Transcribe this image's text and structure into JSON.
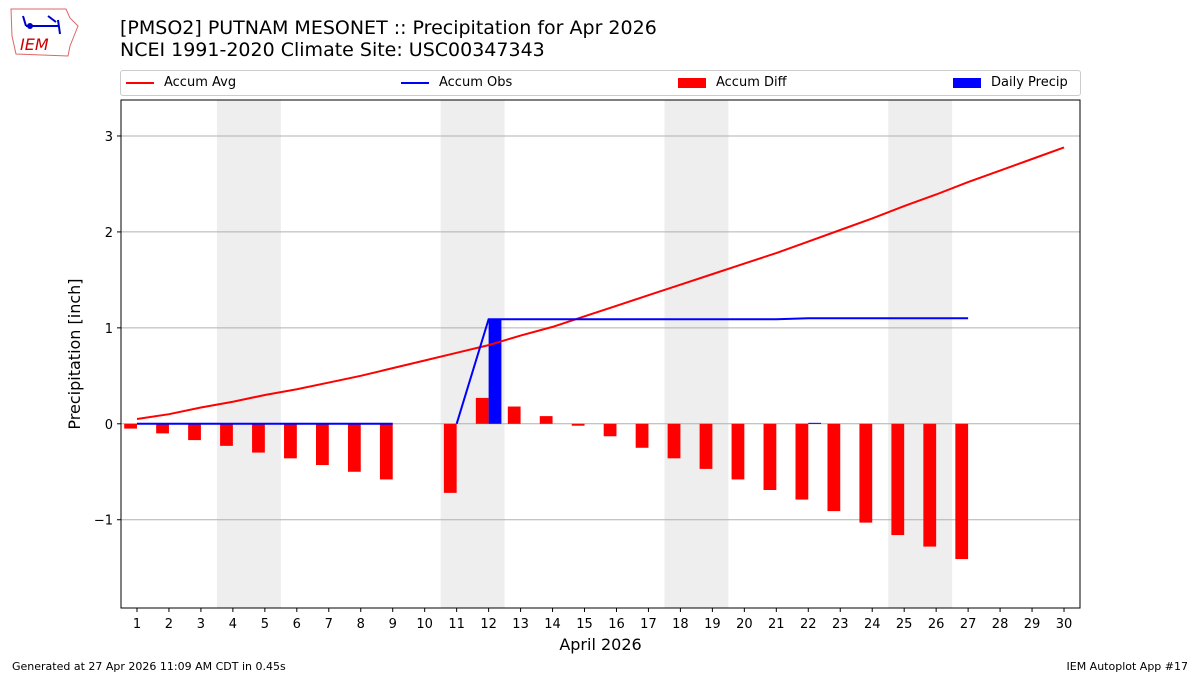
{
  "header": {
    "title_line1": "[PMSO2] PUTNAM MESONET :: Precipitation for Apr 2026",
    "title_line2": "NCEI 1991-2020 Climate Site: USC00347343",
    "logo_text": "IEM"
  },
  "footer": {
    "generated": "Generated at 27 Apr 2026 11:09 AM CDT in 0.45s",
    "app": "IEM Autoplot App #17"
  },
  "chart_data": {
    "type": "bar",
    "xlabel": "April 2026",
    "ylabel": "Precipitation [inch]",
    "xlim": [
      0.5,
      30.5
    ],
    "ylim": [
      -1.92,
      3.375
    ],
    "xticks": [
      1,
      2,
      3,
      4,
      5,
      6,
      7,
      8,
      9,
      10,
      11,
      12,
      13,
      14,
      15,
      16,
      17,
      18,
      19,
      20,
      21,
      22,
      23,
      24,
      25,
      26,
      27,
      28,
      29,
      30
    ],
    "yticks": [
      -1,
      0,
      1,
      2,
      3
    ],
    "ytick_labels": [
      "−1",
      "0",
      "1",
      "2",
      "3"
    ],
    "grid": "horizontal",
    "legend": "top",
    "weekend_shading": [
      [
        4,
        5
      ],
      [
        11,
        12
      ],
      [
        18,
        19
      ],
      [
        25,
        26
      ]
    ],
    "colors": {
      "avg": "#ff0000",
      "obs": "#0000ff",
      "diff": "#ff0000",
      "daily": "#0000ff",
      "shade": "#eeeeee"
    },
    "series": [
      {
        "name": "Accum Avg",
        "type": "line",
        "values": [
          0.05,
          0.1,
          0.17,
          0.23,
          0.3,
          0.36,
          0.43,
          0.5,
          0.58,
          0.66,
          0.74,
          0.82,
          0.92,
          1.01,
          1.12,
          1.23,
          1.34,
          1.45,
          1.56,
          1.67,
          1.78,
          1.9,
          2.02,
          2.14,
          2.27,
          2.39,
          2.52,
          2.64,
          2.76,
          2.88
        ]
      },
      {
        "name": "Accum Obs",
        "type": "line",
        "values": [
          0,
          0,
          0,
          0,
          0,
          0,
          0,
          0,
          0,
          null,
          0,
          1.09,
          1.09,
          1.09,
          1.09,
          1.09,
          1.09,
          1.09,
          1.09,
          1.09,
          1.09,
          1.1,
          1.1,
          1.1,
          1.1,
          1.1,
          1.1,
          null,
          null,
          null
        ]
      },
      {
        "name": "Accum Diff",
        "type": "bar",
        "values": [
          -0.05,
          -0.1,
          -0.17,
          -0.23,
          -0.3,
          -0.36,
          -0.43,
          -0.5,
          -0.58,
          null,
          -0.72,
          0.27,
          0.18,
          0.08,
          -0.02,
          -0.13,
          -0.25,
          -0.36,
          -0.47,
          -0.58,
          -0.69,
          -0.79,
          -0.91,
          -1.03,
          -1.16,
          -1.28,
          -1.41,
          null,
          null,
          null
        ]
      },
      {
        "name": "Daily Precip",
        "type": "bar",
        "values": [
          0,
          0,
          0,
          0,
          0,
          0,
          0,
          0,
          0,
          null,
          0,
          1.09,
          0,
          0,
          0,
          0,
          0,
          0,
          0,
          0,
          0,
          0.01,
          0,
          0,
          0,
          0,
          0,
          null,
          null,
          null
        ]
      }
    ]
  }
}
